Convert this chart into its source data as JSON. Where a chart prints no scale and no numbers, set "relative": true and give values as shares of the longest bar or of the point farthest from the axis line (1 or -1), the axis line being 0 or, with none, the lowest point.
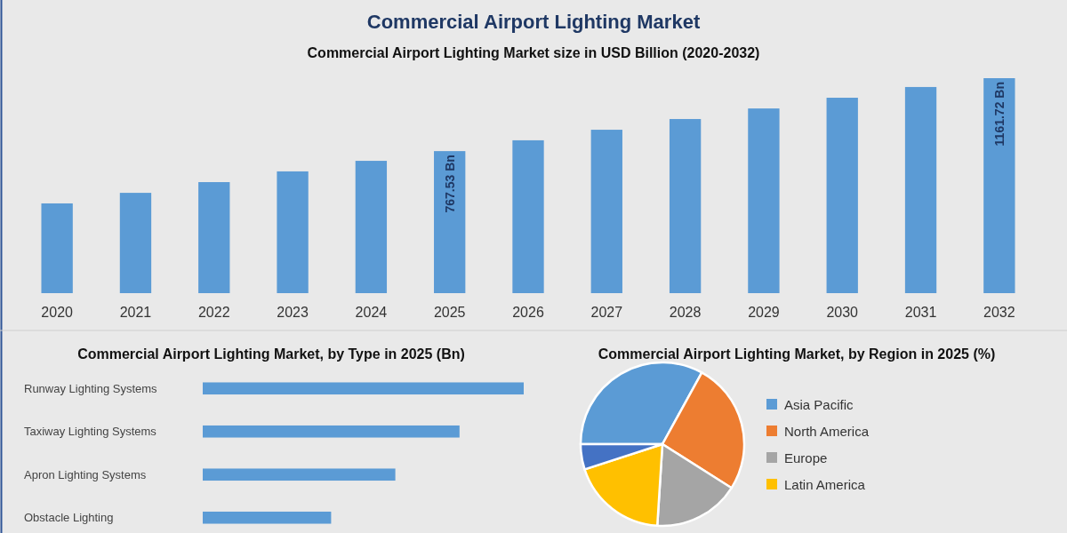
{
  "chart_data": [
    {
      "type": "bar",
      "title": "Commercial Airport Lighting Market",
      "subtitle": "Commercial Airport Lighting Market size in USD Billion (2020-2032)",
      "categories": [
        "2020",
        "2021",
        "2022",
        "2023",
        "2024",
        "2025",
        "2026",
        "2027",
        "2028",
        "2029",
        "2030",
        "2031",
        "2032"
      ],
      "color": "#5b9bd5",
      "values": [
        485,
        542,
        600,
        658,
        715,
        767.53,
        826,
        883,
        941,
        998,
        1056,
        1114,
        1161.72
      ],
      "value_labels": [
        null,
        null,
        null,
        null,
        null,
        "767.53 Bn",
        null,
        null,
        null,
        null,
        null,
        null,
        "1161.72 Bn"
      ]
    },
    {
      "type": "bar",
      "orientation": "horizontal",
      "relative": true,
      "title": "Commercial Airport Lighting Market, by Type in 2025 (Bn)",
      "categories": [
        "Runway Lighting Systems",
        "Taxiway Lighting Systems",
        "Apron Lighting Systems",
        "Obstacle Lighting"
      ],
      "color": "#5b9bd5",
      "values": [
        1,
        0.8,
        0.6,
        0.4
      ]
    },
    {
      "type": "pie",
      "title": "Commercial Airport Lighting Market, by Region in 2025 (%)",
      "categories": [
        "Asia Pacific",
        "North America",
        "Europe",
        "Latin America",
        null
      ],
      "values": [
        33,
        26,
        17,
        19,
        5
      ],
      "colors": [
        "#5b9bd5",
        "#ed7d31",
        "#a5a5a5",
        "#ffc000",
        "#4472c4"
      ],
      "legend": "right"
    }
  ]
}
